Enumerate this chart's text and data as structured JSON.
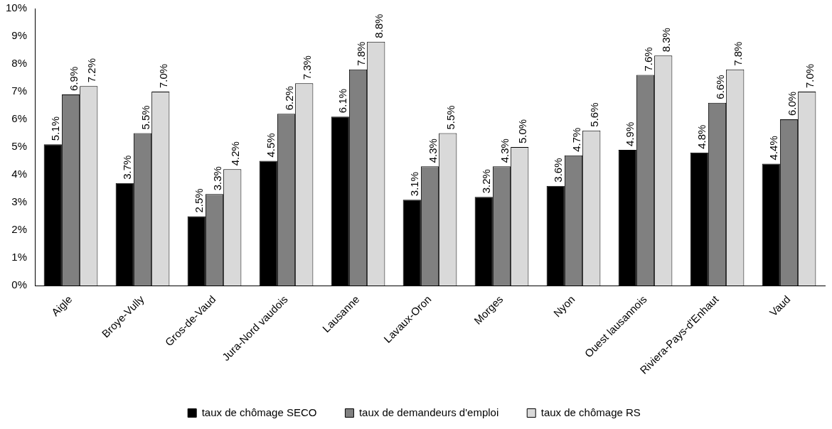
{
  "chart_data": {
    "type": "bar",
    "categories": [
      "Aigle",
      "Broye-Vully",
      "Gros-de-Vaud",
      "Jura-Nord vaudois",
      "Lausanne",
      "Lavaux-Oron",
      "Morges",
      "Nyon",
      "Ouest lausannois",
      "Riviera-Pays-d'Enhaut",
      "Vaud"
    ],
    "series": [
      {
        "name": "taux de chômage SECO",
        "color": "#000000",
        "values": [
          5.1,
          3.7,
          2.5,
          4.5,
          6.1,
          3.1,
          3.2,
          3.6,
          4.9,
          4.8,
          4.4
        ],
        "value_labels": [
          "5.1%",
          "3.7%",
          "2.5%",
          "4.5%",
          "6.1%",
          "3.1%",
          "3.2%",
          "3.6%",
          "4.9%",
          "4.8%",
          "4.4%"
        ]
      },
      {
        "name": "taux de demandeurs d'emploi",
        "color": "#808080",
        "values": [
          6.9,
          5.5,
          3.3,
          6.2,
          7.8,
          4.3,
          4.3,
          4.7,
          7.6,
          6.6,
          6.0
        ],
        "value_labels": [
          "6.9%",
          "5.5%",
          "3.3%",
          "6.2%",
          "7.8%",
          "4.3%",
          "4.3%",
          "4.7%",
          "7.6%",
          "6.6%",
          "6.0%"
        ]
      },
      {
        "name": "taux de chômage RS",
        "color": "#d9d9d9",
        "values": [
          7.2,
          7.0,
          4.2,
          7.3,
          8.8,
          5.5,
          5.0,
          5.6,
          8.3,
          7.8,
          7.0
        ],
        "value_labels": [
          "7.2%",
          "7.0%",
          "4.2%",
          "7.3%",
          "8.8%",
          "5.5%",
          "5.0%",
          "5.6%",
          "8.3%",
          "7.8%",
          "7.0%"
        ]
      }
    ],
    "ylim": [
      0,
      10
    ],
    "yticks": [
      {
        "value": 0,
        "label": "0%"
      },
      {
        "value": 1,
        "label": "1%"
      },
      {
        "value": 2,
        "label": "2%"
      },
      {
        "value": 3,
        "label": "3%"
      },
      {
        "value": 4,
        "label": "4%"
      },
      {
        "value": 5,
        "label": "5%"
      },
      {
        "value": 6,
        "label": "6%"
      },
      {
        "value": 7,
        "label": "7%"
      },
      {
        "value": 8,
        "label": "8%"
      },
      {
        "value": 9,
        "label": "9%"
      },
      {
        "value": 10,
        "label": "10%"
      }
    ],
    "grid": false,
    "legend": "bottom"
  }
}
